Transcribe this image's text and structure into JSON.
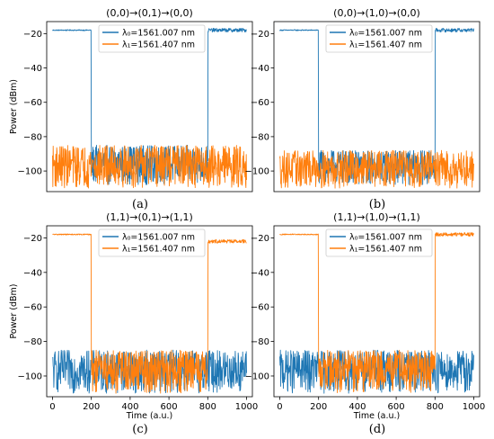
{
  "figure": {
    "panel_labels": [
      "(a)",
      "(b)",
      "(c)",
      "(d)"
    ]
  },
  "chart_data": [
    {
      "type": "line",
      "title": "(0,0)→(0,1)→(0,0)",
      "xlabel": "",
      "ylabel": "Power (dBm)",
      "xlim": [
        -30,
        1030
      ],
      "ylim": [
        -112,
        -13
      ],
      "xticks": [],
      "yticks": [
        -100,
        -80,
        -60,
        -40,
        -20
      ],
      "ytick_labels": [
        "−100",
        "−80",
        "−60",
        "−40",
        "−20"
      ],
      "legend": {
        "placement": "top-center",
        "entries": [
          "λ₀=1561.007 nm",
          "λ₁=1561.407 nm"
        ]
      },
      "series": [
        {
          "name": "λ₀=1561.007 nm",
          "color": "#1f77b4",
          "pattern": "step-high-low-high",
          "high_dbm": -18,
          "low_range_dbm": [
            -108,
            -85
          ],
          "transitions": [
            200,
            800
          ],
          "noise_levels_dbm": [
            -85,
            -110
          ]
        },
        {
          "name": "λ₁=1561.407 nm",
          "color": "#ff7f0e",
          "pattern": "noise",
          "low_range_dbm": [
            -110,
            -85
          ]
        }
      ]
    },
    {
      "type": "line",
      "title": "(0,0)→(1,0)→(0,0)",
      "xlabel": "",
      "ylabel": "",
      "xlim": [
        -30,
        1030
      ],
      "ylim": [
        -112,
        -13
      ],
      "xticks": [],
      "yticks": [
        -100,
        -80,
        -60,
        -40,
        -20
      ],
      "ytick_labels": [
        "−100",
        "−80",
        "−60",
        "−40",
        "−20"
      ],
      "legend": {
        "placement": "top-center",
        "entries": [
          "λ₀=1561.007 nm",
          "λ₁=1561.407 nm"
        ]
      },
      "series": [
        {
          "name": "λ₀=1561.007 nm",
          "color": "#1f77b4",
          "pattern": "step-high-low-high",
          "high_dbm": -18,
          "low_range_dbm": [
            -108,
            -88
          ],
          "transitions": [
            200,
            800
          ]
        },
        {
          "name": "λ₁=1561.407 nm",
          "color": "#ff7f0e",
          "pattern": "noise",
          "low_range_dbm": [
            -110,
            -88
          ]
        }
      ]
    },
    {
      "type": "line",
      "title": "(1,1)→(0,1)→(1,1)",
      "xlabel": "Time (a.u.)",
      "ylabel": "Power (dBm)",
      "xlim": [
        -30,
        1030
      ],
      "ylim": [
        -112,
        -13
      ],
      "xticks": [
        0,
        200,
        400,
        600,
        800,
        1000
      ],
      "yticks": [
        -100,
        -80,
        -60,
        -40,
        -20
      ],
      "ytick_labels": [
        "−100",
        "−80",
        "−60",
        "−40",
        "−20"
      ],
      "legend": {
        "placement": "top-center",
        "entries": [
          "λ₀=1561.007 nm",
          "λ₁=1561.407 nm"
        ]
      },
      "series": [
        {
          "name": "λ₀=1561.007 nm",
          "color": "#1f77b4",
          "pattern": "noise",
          "low_range_dbm": [
            -110,
            -85
          ]
        },
        {
          "name": "λ₁=1561.407 nm",
          "color": "#ff7f0e",
          "pattern": "step-high-low-high",
          "high_dbm": -18,
          "high_end_dbm": -22,
          "low_range_dbm": [
            -110,
            -85
          ],
          "transitions": [
            200,
            800
          ]
        }
      ]
    },
    {
      "type": "line",
      "title": "(1,1)→(1,0)→(1,1)",
      "xlabel": "Time (a.u.)",
      "ylabel": "",
      "xlim": [
        -30,
        1030
      ],
      "ylim": [
        -112,
        -13
      ],
      "xticks": [
        0,
        200,
        400,
        600,
        800,
        1000
      ],
      "yticks": [
        -100,
        -80,
        -60,
        -40,
        -20
      ],
      "ytick_labels": [
        "−100",
        "−80",
        "−60",
        "−40",
        "−20"
      ],
      "legend": {
        "placement": "top-center",
        "entries": [
          "λ₀=1561.007 nm",
          "λ₁=1561.407 nm"
        ]
      },
      "series": [
        {
          "name": "λ₀=1561.007 nm",
          "color": "#1f77b4",
          "pattern": "noise",
          "low_range_dbm": [
            -110,
            -85
          ]
        },
        {
          "name": "λ₁=1561.407 nm",
          "color": "#ff7f0e",
          "pattern": "step-high-low-high",
          "high_dbm": -18,
          "low_range_dbm": [
            -110,
            -85
          ],
          "transitions": [
            200,
            800
          ]
        }
      ]
    }
  ]
}
